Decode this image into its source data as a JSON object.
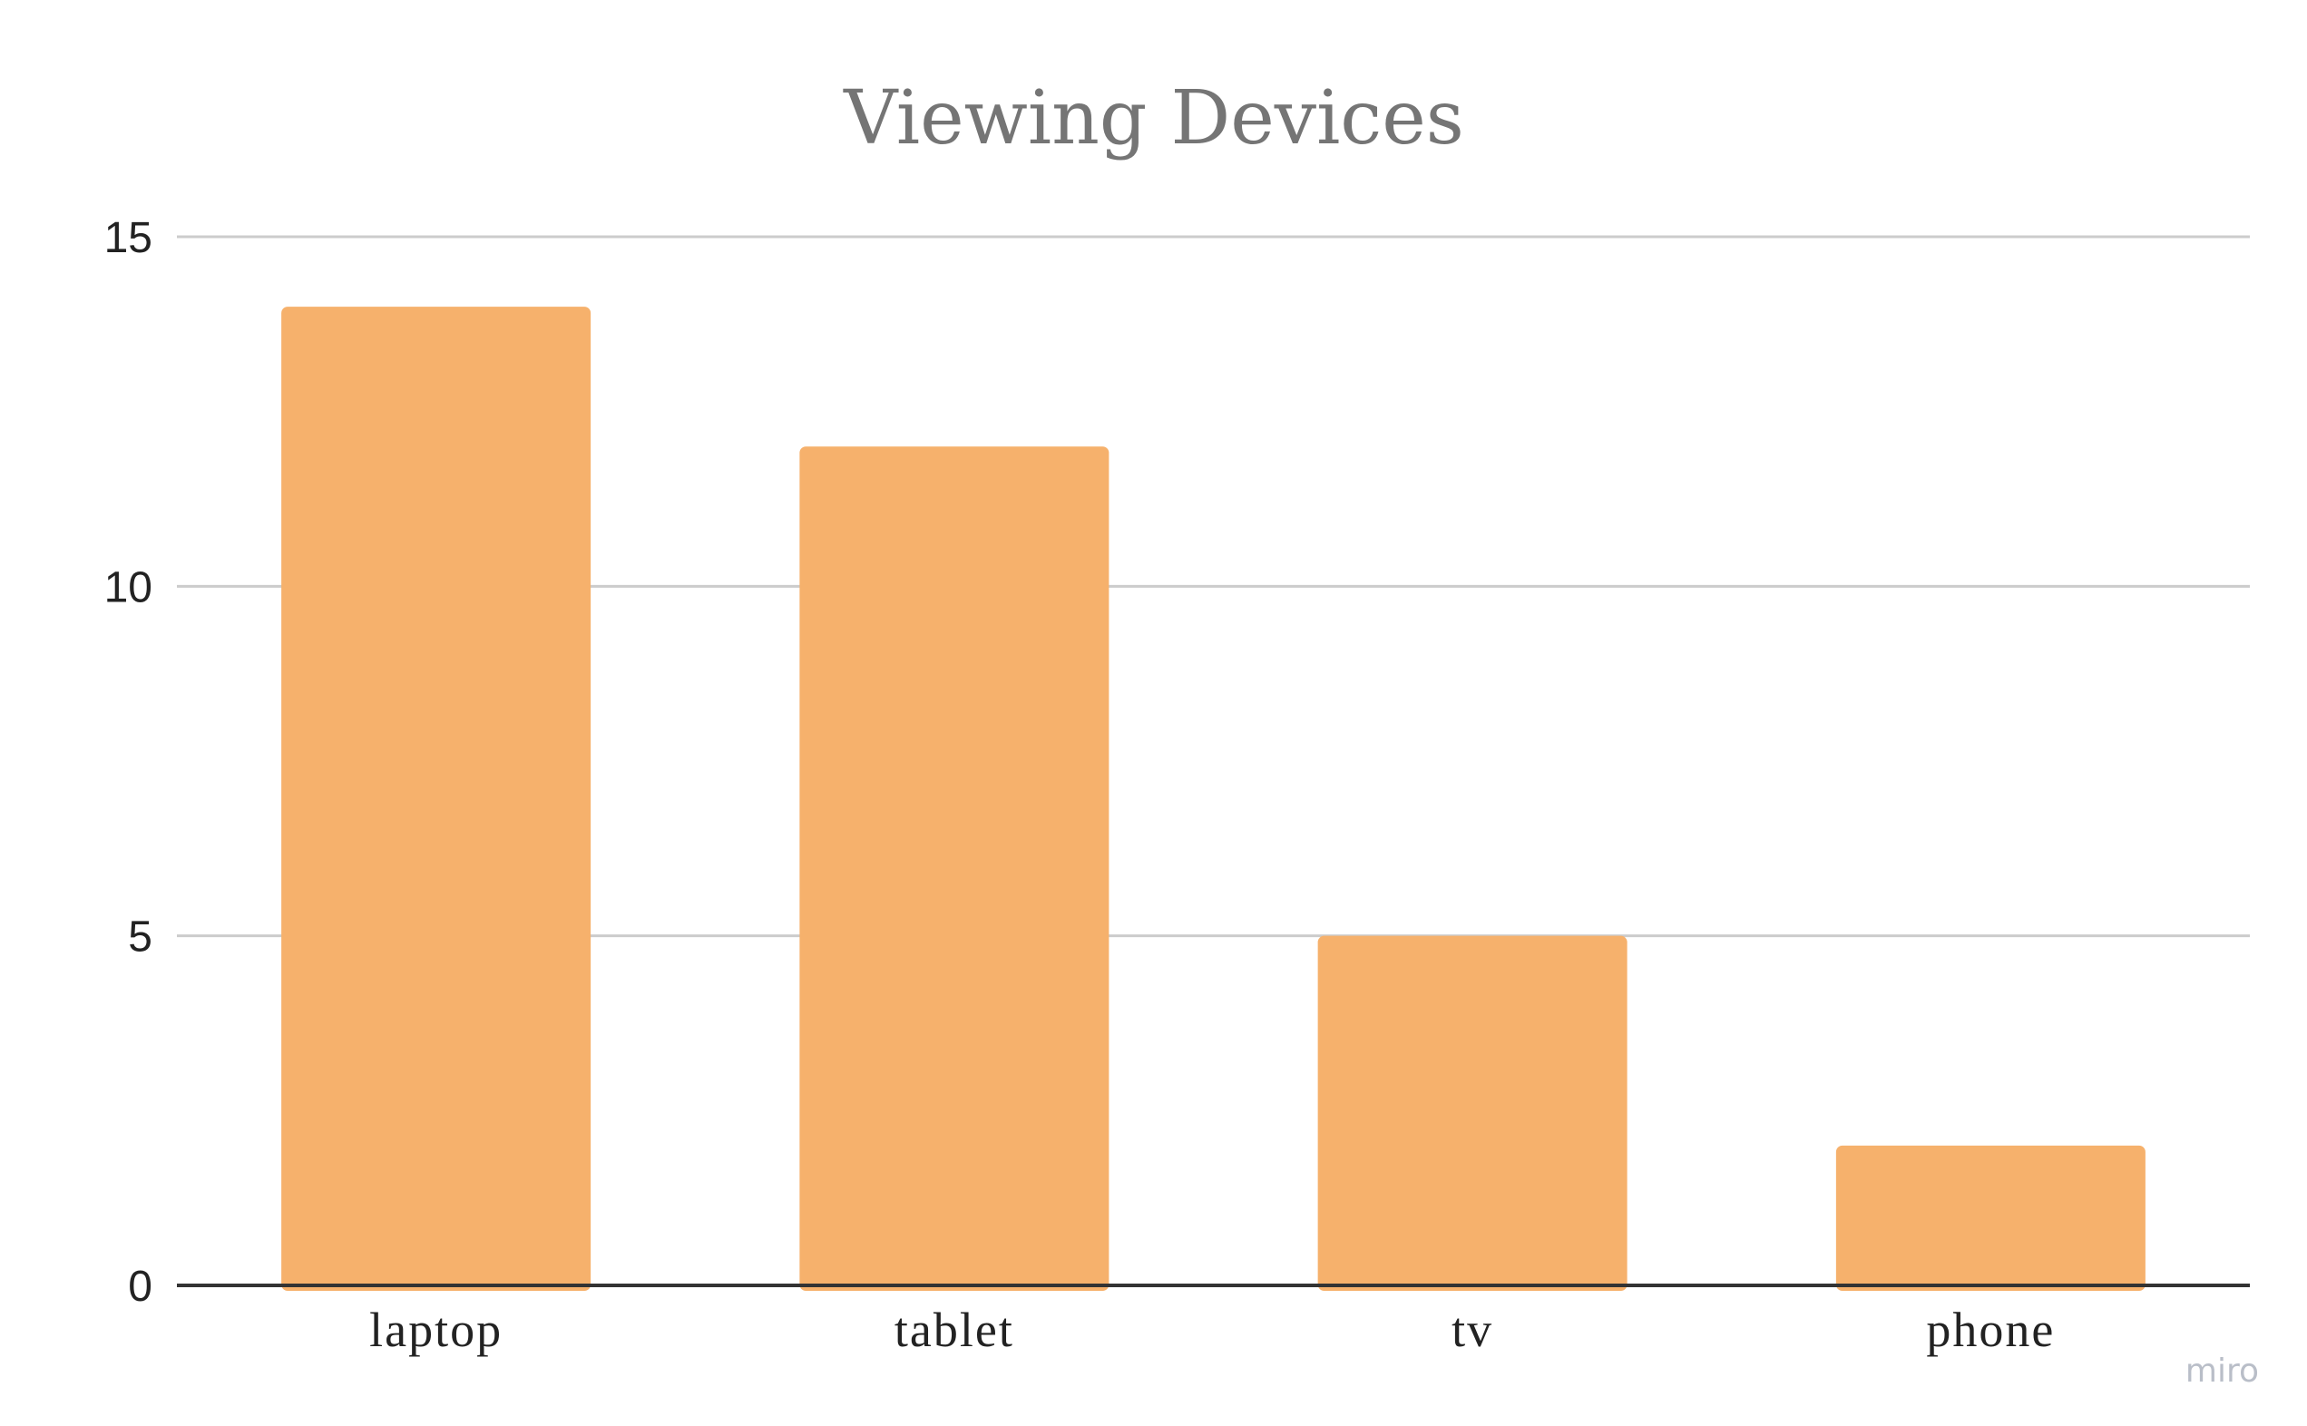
{
  "chart_data": {
    "type": "bar",
    "title": "Viewing Devices",
    "xlabel": "",
    "ylabel": "",
    "categories": [
      "laptop",
      "tablet",
      "tv",
      "phone"
    ],
    "values": [
      14,
      12,
      5,
      2
    ],
    "ylim": [
      0,
      15
    ],
    "yticks": [
      {
        "value": 0,
        "label": "0"
      },
      {
        "value": 5,
        "label": "5"
      },
      {
        "value": 10,
        "label": "10"
      },
      {
        "value": 15,
        "label": "15"
      }
    ],
    "grid": true,
    "legend": "none",
    "bar_color": "#f6b16c",
    "grid_color": "#cccccc",
    "axis_color": "#333333"
  },
  "watermark": "miro"
}
